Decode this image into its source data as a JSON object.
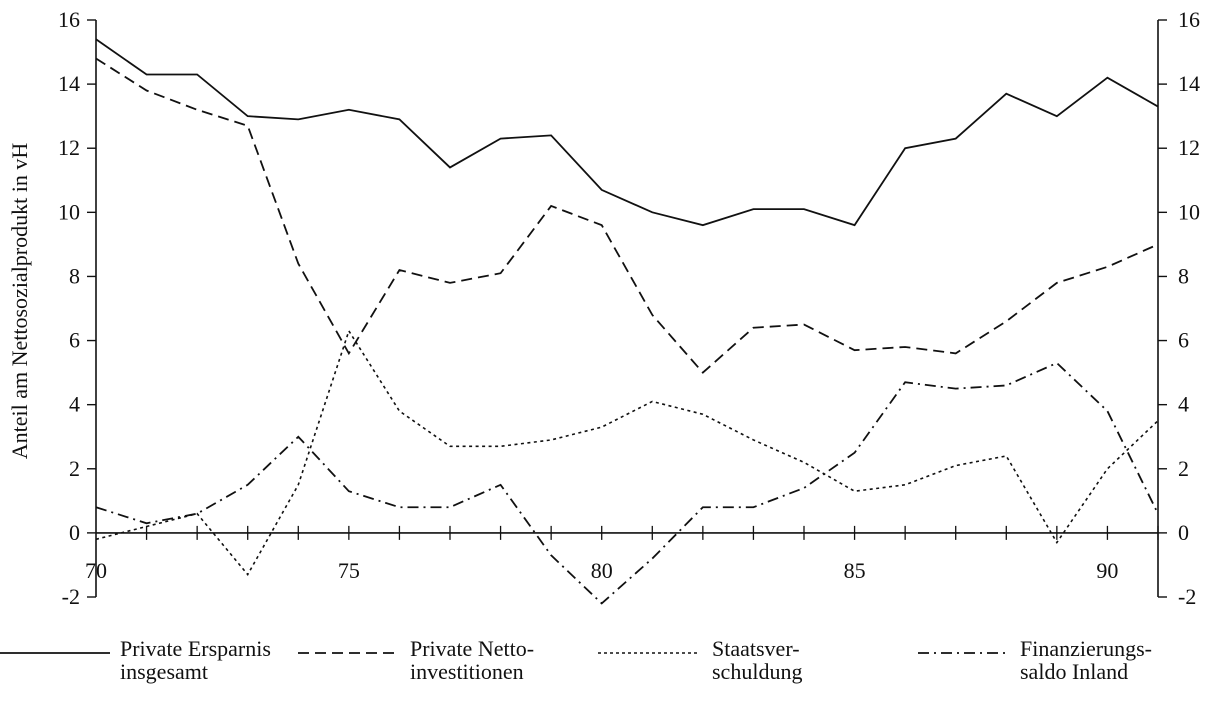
{
  "chart_data": {
    "type": "line",
    "xlabel": "",
    "ylabel": "Anteil am Nettosozialprodukt in vH",
    "xlim": [
      70,
      91
    ],
    "ylim": [
      -2,
      16
    ],
    "xticks": [
      70,
      75,
      80,
      85,
      90
    ],
    "yticks": [
      -2,
      0,
      2,
      4,
      6,
      8,
      10,
      12,
      14,
      16
    ],
    "x": [
      70,
      71,
      72,
      73,
      74,
      75,
      76,
      77,
      78,
      79,
      80,
      81,
      82,
      83,
      84,
      85,
      86,
      87,
      88,
      89,
      90,
      91
    ],
    "legend_position": "bottom",
    "grid": false,
    "series": [
      {
        "name": "Private Ersparnis insgesamt",
        "legend_lines": [
          "Private Ersparnis",
          "insgesamt"
        ],
        "dash": "solid",
        "values": [
          15.4,
          14.3,
          14.3,
          13.0,
          12.9,
          13.2,
          12.9,
          11.4,
          12.3,
          12.4,
          10.7,
          10.0,
          9.6,
          10.1,
          10.1,
          9.6,
          12.0,
          12.3,
          13.7,
          13.0,
          14.2,
          13.3
        ]
      },
      {
        "name": "Private Nettoinvestitionen",
        "legend_lines": [
          "Private Netto-",
          "investitionen"
        ],
        "dash": "dashed",
        "values": [
          14.8,
          13.8,
          13.2,
          12.7,
          8.4,
          5.6,
          8.2,
          7.8,
          8.1,
          10.2,
          9.6,
          6.8,
          5.0,
          6.4,
          6.5,
          5.7,
          5.8,
          5.6,
          6.6,
          7.8,
          8.3,
          9.0
        ]
      },
      {
        "name": "Staatsverschuldung",
        "legend_lines": [
          "Staatsver-",
          "schuldung"
        ],
        "dash": "dotted",
        "values": [
          -0.2,
          0.2,
          0.6,
          -1.3,
          1.5,
          6.3,
          3.8,
          2.7,
          2.7,
          2.9,
          3.3,
          4.1,
          3.7,
          2.9,
          2.2,
          1.3,
          1.5,
          2.1,
          2.4,
          -0.3,
          2.0,
          3.5
        ]
      },
      {
        "name": "Finanzierungssaldo Inland",
        "legend_lines": [
          "Finanzierungs-",
          "saldo Inland"
        ],
        "dash": "dashdot",
        "values": [
          0.8,
          0.3,
          0.6,
          1.5,
          3.0,
          1.3,
          0.8,
          0.8,
          1.5,
          -0.7,
          -2.2,
          -0.8,
          0.8,
          0.8,
          1.4,
          2.5,
          4.7,
          4.5,
          4.6,
          5.3,
          3.8,
          0.6
        ]
      }
    ]
  }
}
